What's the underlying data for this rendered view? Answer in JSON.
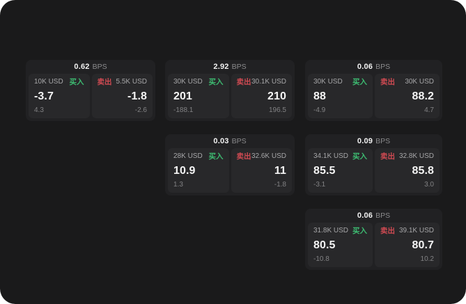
{
  "labels": {
    "bps_unit": "BPS",
    "buy": "买入",
    "sell": "卖出"
  },
  "colors": {
    "buy": "#3dbb71",
    "sell": "#cf4a52",
    "panel_bg": "#1a1a1b",
    "card_bg": "#212123",
    "subcard_bg": "#28282a"
  },
  "cards": [
    {
      "bps": "0.62",
      "buy": {
        "amount": "10K USD",
        "price": "-3.7",
        "delta": "4.3"
      },
      "sell": {
        "amount": "5.5K USD",
        "price": "-1.8",
        "delta": "-2.6"
      }
    },
    {
      "bps": "2.92",
      "buy": {
        "amount": "30K USD",
        "price": "201",
        "delta": "-188.1"
      },
      "sell": {
        "amount": "30.1K USD",
        "price": "210",
        "delta": "196.5"
      }
    },
    {
      "bps": "0.06",
      "buy": {
        "amount": "30K USD",
        "price": "88",
        "delta": "-4.9"
      },
      "sell": {
        "amount": "30K USD",
        "price": "88.2",
        "delta": "4.7"
      }
    },
    {
      "bps": "0.03",
      "buy": {
        "amount": "28K USD",
        "price": "10.9",
        "delta": "1.3"
      },
      "sell": {
        "amount": "32.6K USD",
        "price": "11",
        "delta": "-1.8"
      }
    },
    {
      "bps": "0.09",
      "buy": {
        "amount": "34.1K USD",
        "price": "85.5",
        "delta": "-3.1"
      },
      "sell": {
        "amount": "32.8K USD",
        "price": "85.8",
        "delta": "3.0"
      }
    },
    {
      "bps": "0.06",
      "buy": {
        "amount": "31.8K USD",
        "price": "80.5",
        "delta": "-10.8"
      },
      "sell": {
        "amount": "39.1K USD",
        "price": "80.7",
        "delta": "10.2"
      }
    }
  ]
}
